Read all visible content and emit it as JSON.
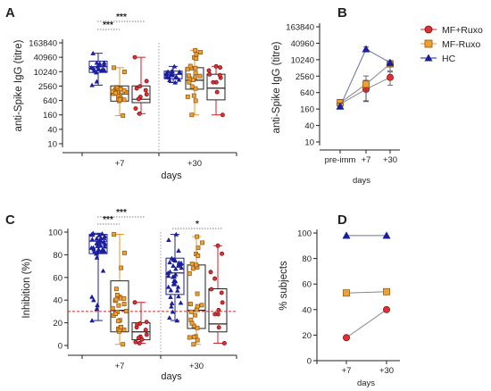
{
  "colors": {
    "mf_ruxo": "#d21f2b",
    "mf_ruxo_fill": "#e03030",
    "ruxo": "#e8962e",
    "hc": "#1b1f9c",
    "ref": "#d12a2a",
    "axis": "#222222"
  },
  "chart_data": [
    {
      "panel": "A",
      "type": "box",
      "ylabel": "anti-Spike IgG (titre)",
      "xlabel": "days",
      "yscale": "log2",
      "yticks": [
        "163840",
        "40960",
        "10240",
        "2560",
        "640",
        "160",
        "40",
        "10"
      ],
      "ylim": [
        10,
        163840
      ],
      "groups": [
        "+7",
        "+30"
      ],
      "series": [
        {
          "name": "HC",
          "color": "hc",
          "boxes": [
            {
              "group": "+7",
              "min": 2800,
              "q1": 9500,
              "median": 16500,
              "q3": 28000,
              "max": 60000
            },
            {
              "group": "+30",
              "min": 3600,
              "q1": 5200,
              "median": 7900,
              "q3": 10800,
              "max": 17000
            }
          ]
        },
        {
          "name": "MF-Ruxo",
          "color": "ruxo",
          "boxes": [
            {
              "group": "+7",
              "min": 150,
              "q1": 600,
              "median": 1200,
              "q3": 2600,
              "max": 15000
            },
            {
              "group": "+30",
              "min": 160,
              "q1": 1900,
              "median": 4500,
              "q3": 15000,
              "max": 80000
            }
          ]
        },
        {
          "name": "MF+Ruxo",
          "color": "mf_ruxo",
          "boxes": [
            {
              "group": "+7",
              "min": 180,
              "q1": 520,
              "median": 720,
              "q3": 2600,
              "max": 40960
            },
            {
              "group": "+30",
              "min": 160,
              "q1": 680,
              "median": 2100,
              "q3": 8000,
              "max": 17000
            }
          ]
        }
      ],
      "significance": [
        "***",
        "***"
      ]
    },
    {
      "panel": "B",
      "type": "line",
      "ylabel": "anti-Spike IgG (titre)",
      "xlabel": "days",
      "yscale": "log2",
      "yticks": [
        "163840",
        "40960",
        "10240",
        "2560",
        "640",
        "160",
        "40",
        "10"
      ],
      "ylim": [
        10,
        163840
      ],
      "x": [
        "pre-imm",
        "+7",
        "+30"
      ],
      "series": [
        {
          "name": "MF+Ruxo",
          "color": "mf_ruxo",
          "marker": "circle",
          "values": [
            240,
            850,
            2300
          ],
          "err": [
            [
              180,
              320
            ],
            [
              320,
              1800
            ],
            [
              1200,
              3600
            ]
          ]
        },
        {
          "name": "MF-Ruxo",
          "color": "ruxo",
          "marker": "square",
          "values": [
            270,
            1300,
            7200
          ],
          "err": [
            [
              200,
              360
            ],
            [
              300,
              2600
            ],
            [
              4000,
              9000
            ]
          ]
        },
        {
          "name": "HC",
          "color": "hc",
          "marker": "triangle",
          "values": [
            200,
            25000,
            8000
          ],
          "err": [
            [
              160,
              260
            ],
            [
              20000,
              30000
            ],
            [
              6000,
              9500
            ]
          ]
        }
      ],
      "legend": [
        "MF+Ruxo",
        "MF-Ruxo",
        "HC"
      ]
    },
    {
      "panel": "C",
      "type": "box",
      "ylabel": "Inhibition (%)",
      "xlabel": "days",
      "yticks": [
        "100",
        "80",
        "60",
        "40",
        "20",
        "0"
      ],
      "ylim": [
        0,
        100
      ],
      "groups": [
        "+7",
        "+30"
      ],
      "reference_line": 30,
      "series": [
        {
          "name": "HC",
          "color": "hc",
          "boxes": [
            {
              "group": "+7",
              "min": 22,
              "q1": 81,
              "median": 92,
              "q3": 98,
              "max": 99
            },
            {
              "group": "+30",
              "min": 22,
              "q1": 45,
              "median": 64,
              "q3": 77,
              "max": 98
            }
          ]
        },
        {
          "name": "MF-Ruxo",
          "color": "ruxo",
          "boxes": [
            {
              "group": "+7",
              "min": 1,
              "q1": 12,
              "median": 31,
              "q3": 57,
              "max": 98
            },
            {
              "group": "+30",
              "min": 1,
              "q1": 15,
              "median": 31,
              "q3": 71,
              "max": 96
            }
          ]
        },
        {
          "name": "MF+Ruxo",
          "color": "mf_ruxo",
          "boxes": [
            {
              "group": "+7",
              "min": 2,
              "q1": 5,
              "median": 12,
              "q3": 20,
              "max": 38
            },
            {
              "group": "+30",
              "min": 2,
              "q1": 12,
              "median": 19,
              "q3": 50,
              "max": 88
            }
          ]
        }
      ],
      "significance": [
        "***",
        "***",
        "*"
      ]
    },
    {
      "panel": "D",
      "type": "line",
      "ylabel": "% subjects",
      "xlabel": "days",
      "yticks": [
        "100",
        "80",
        "60",
        "40",
        "20",
        "0"
      ],
      "ylim": [
        0,
        100
      ],
      "x": [
        "+7",
        "+30"
      ],
      "series": [
        {
          "name": "HC",
          "color": "hc",
          "marker": "triangle",
          "values": [
            98,
            98
          ]
        },
        {
          "name": "MF-Ruxo",
          "color": "ruxo",
          "marker": "square",
          "values": [
            53,
            54
          ]
        },
        {
          "name": "MF+Ruxo",
          "color": "mf_ruxo",
          "marker": "circle",
          "values": [
            18,
            40
          ]
        }
      ]
    }
  ]
}
